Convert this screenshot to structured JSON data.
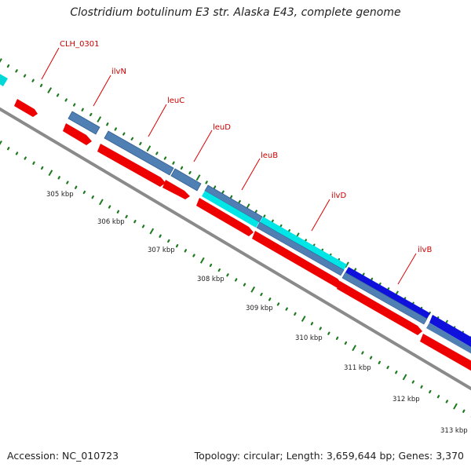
{
  "title": "Clostridium botulinum E3 str. Alaska E43, complete genome",
  "footer": {
    "accession": "Accession: NC_010723",
    "stats": "Topology: circular; Length: 3,659,644 bp; Genes: 3,370"
  },
  "colors": {
    "cds_forward": "#ff0000",
    "gene_steelblue": "#4f7fb3",
    "gene_cyan": "#00e5e5",
    "gene_blue": "#1010dd",
    "backbone": "#8a8a8a",
    "tick": "#1e7a1e",
    "label": "#cc0000"
  },
  "gene_labels": [
    {
      "name": "CLH_0301"
    },
    {
      "name": "ilvN"
    },
    {
      "name": "leuC"
    },
    {
      "name": "leuD"
    },
    {
      "name": "leuB"
    },
    {
      "name": "ilvD"
    },
    {
      "name": "ilvB"
    }
  ],
  "kbp_ticks": [
    {
      "label": "305 kbp"
    },
    {
      "label": "306 kbp"
    },
    {
      "label": "307 kbp"
    },
    {
      "label": "308 kbp"
    },
    {
      "label": "309 kbp"
    },
    {
      "label": "310 kbp"
    },
    {
      "label": "311 kbp"
    },
    {
      "label": "312 kbp"
    },
    {
      "label": "313 kbp"
    }
  ]
}
